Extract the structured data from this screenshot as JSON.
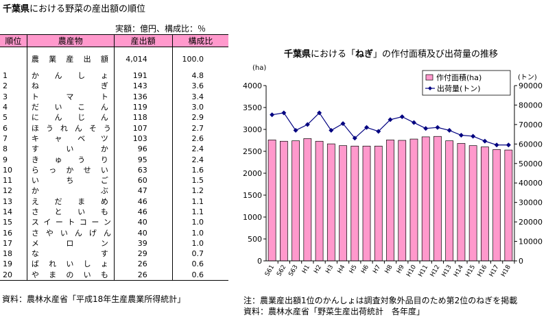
{
  "left": {
    "title_bold": "千葉県",
    "title_rest": "における野菜の産出額の順位",
    "unit_note": "実額：億円、構成比：％",
    "headers": [
      "順位",
      "農産物",
      "産出額",
      "構成比"
    ],
    "total": {
      "label": "農業産出額",
      "amount": "4,014",
      "share": "100.0"
    },
    "rows": [
      {
        "rank": "1",
        "name": "かんしょ",
        "amount": "191",
        "share": "4.8"
      },
      {
        "rank": "2",
        "name": "ねぎ",
        "amount": "143",
        "share": "3.6"
      },
      {
        "rank": "3",
        "name": "トマト",
        "amount": "136",
        "share": "3.4"
      },
      {
        "rank": "4",
        "name": "だいこん",
        "amount": "119",
        "share": "3.0"
      },
      {
        "rank": "5",
        "name": "にんじん",
        "amount": "118",
        "share": "2.9"
      },
      {
        "rank": "6",
        "name": "ほうれんそう",
        "amount": "107",
        "share": "2.7"
      },
      {
        "rank": "7",
        "name": "キャベツ",
        "amount": "103",
        "share": "2.6"
      },
      {
        "rank": "8",
        "name": "すいか",
        "amount": "96",
        "share": "2.4"
      },
      {
        "rank": "9",
        "name": "きゅうり",
        "amount": "95",
        "share": "2.4"
      },
      {
        "rank": "10",
        "name": "らっかせい",
        "amount": "63",
        "share": "1.6"
      },
      {
        "rank": "11",
        "name": "いちご",
        "amount": "60",
        "share": "1.5"
      },
      {
        "rank": "12",
        "name": "かぶ",
        "amount": "47",
        "share": "1.2"
      },
      {
        "rank": "13",
        "name": "えだまめ",
        "amount": "46",
        "share": "1.1"
      },
      {
        "rank": "14",
        "name": "さといも",
        "amount": "46",
        "share": "1.1"
      },
      {
        "rank": "15",
        "name": "スイートコーン",
        "amount": "40",
        "share": "1.0"
      },
      {
        "rank": "16",
        "name": "さやいんげん",
        "amount": "40",
        "share": "1.0"
      },
      {
        "rank": "17",
        "name": "メロン",
        "amount": "39",
        "share": "1.0"
      },
      {
        "rank": "18",
        "name": "なす",
        "amount": "29",
        "share": "0.7"
      },
      {
        "rank": "19",
        "name": "ばれいしょ",
        "amount": "26",
        "share": "0.6"
      },
      {
        "rank": "20",
        "name": "やまのいも",
        "amount": "26",
        "share": "0.6"
      }
    ],
    "source": "資料：農林水産省「平成18年生産農業所得統計」"
  },
  "right": {
    "title_bold": "千葉県",
    "title_mid": "における「",
    "title_bold2": "ねぎ",
    "title_rest": "」の作付面積及び出荷量の推移",
    "note": "注：農業産出額1位のかんしょは調査対象外品目のため第2位のねぎを掲載",
    "source": "資料：農林水産省「野菜生産出荷統計　各年度」"
  },
  "chart_data": {
    "type": "bar+line",
    "categories": [
      "S61",
      "S62",
      "S63",
      "H1",
      "H2",
      "H3",
      "H4",
      "H5",
      "H6",
      "H7",
      "H8",
      "H9",
      "H10",
      "H11",
      "H12",
      "H13",
      "H14",
      "H15",
      "H16",
      "H17",
      "H18"
    ],
    "series": [
      {
        "name": "作付面積(ha)",
        "type": "bar",
        "axis": "left",
        "color": "#ff99cc",
        "values": [
          2760,
          2730,
          2740,
          2790,
          2730,
          2670,
          2630,
          2620,
          2620,
          2620,
          2760,
          2750,
          2780,
          2830,
          2840,
          2740,
          2680,
          2630,
          2600,
          2540,
          2530
        ]
      },
      {
        "name": "出荷量(トン)",
        "type": "line",
        "axis": "right",
        "color": "#000080",
        "values": [
          75000,
          76000,
          67000,
          70000,
          76000,
          67000,
          70500,
          63000,
          68500,
          66500,
          72500,
          74000,
          71000,
          68000,
          68500,
          67000,
          64500,
          64000,
          61500,
          59500,
          59500
        ]
      }
    ],
    "y_left": {
      "unit": "(ha)",
      "min": 0,
      "max": 4000,
      "step": 500,
      "ticks": [
        "0",
        "500",
        "1000",
        "1500",
        "2000",
        "2500",
        "3000",
        "3500",
        "4000"
      ]
    },
    "y_right": {
      "unit": "(トン)",
      "min": 0,
      "max": 90000,
      "step": 10000,
      "ticks": [
        "0",
        "10000",
        "20000",
        "30000",
        "40000",
        "50000",
        "60000",
        "70000",
        "80000",
        "90000"
      ]
    },
    "grid": false,
    "legend": "top-right"
  }
}
